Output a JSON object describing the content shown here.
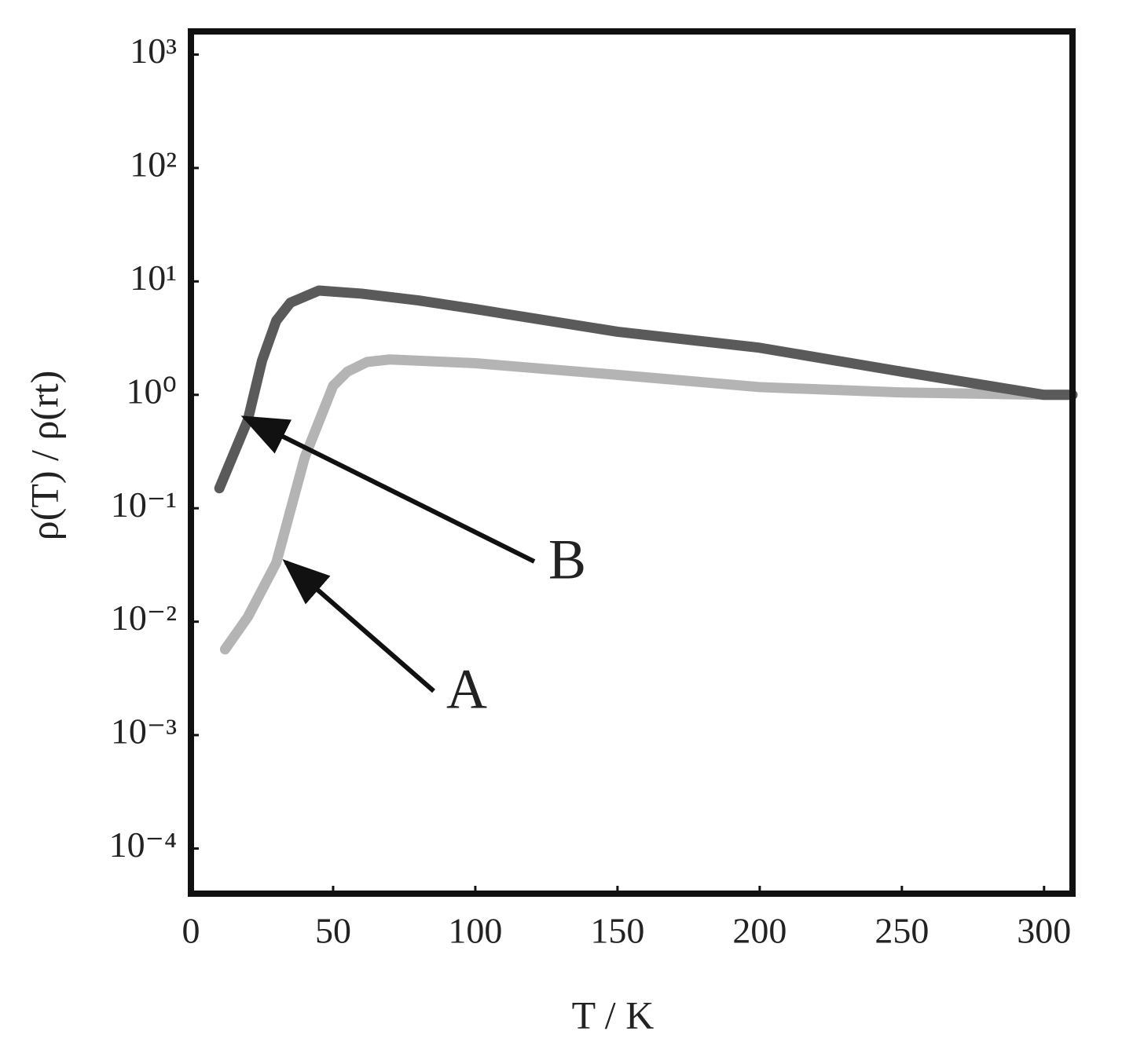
{
  "chart_data": {
    "type": "line",
    "x_label": "T / K",
    "y_label": "ρ(T) / ρ(rt)",
    "xlim": [
      0,
      310
    ],
    "xticks": [
      0,
      50,
      100,
      150,
      200,
      250,
      300
    ],
    "ylim": [
      4e-05,
      1600
    ],
    "y_log": true,
    "yticks": [
      {
        "value": 0.0001,
        "label": "10⁻⁴"
      },
      {
        "value": 0.001,
        "label": "10⁻³"
      },
      {
        "value": 0.01,
        "label": "10⁻²"
      },
      {
        "value": 0.1,
        "label": "10⁻¹"
      },
      {
        "value": 1,
        "label": "10⁰"
      },
      {
        "value": 10,
        "label": "10¹"
      },
      {
        "value": 100,
        "label": "10²"
      },
      {
        "value": 1000,
        "label": "10³"
      }
    ],
    "series": [
      {
        "name": "A",
        "color": "#b4b4b4",
        "x": [
          12,
          20,
          30,
          40,
          50,
          55,
          62,
          70,
          100,
          150,
          200,
          250,
          300,
          310
        ],
        "values": [
          0.0057,
          0.011,
          0.033,
          0.28,
          1.2,
          1.6,
          1.95,
          2.05,
          1.9,
          1.5,
          1.17,
          1.05,
          1.0,
          1.0
        ]
      },
      {
        "name": "B",
        "color": "#5a5a5a",
        "x": [
          10,
          20,
          25,
          30,
          35,
          45,
          60,
          80,
          100,
          150,
          200,
          250,
          300,
          310
        ],
        "values": [
          0.15,
          0.6,
          2.0,
          4.5,
          6.5,
          8.3,
          7.8,
          6.8,
          5.7,
          3.6,
          2.6,
          1.6,
          1.0,
          1.0
        ]
      }
    ]
  }
}
